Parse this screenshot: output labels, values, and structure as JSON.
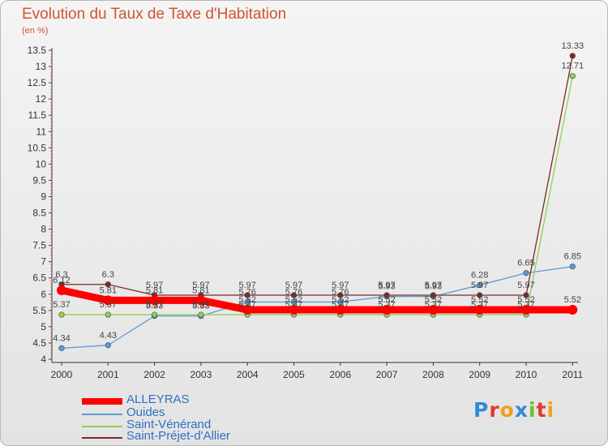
{
  "title": "Evolution du Taux de Taxe d'Habitation",
  "subtitle": "(en %)",
  "logo_text": "Proxiti",
  "logo_colors": [
    "#2f8ad8",
    "#e23b2a",
    "#f0a01a",
    "#2f8ad8",
    "#6cbf2a",
    "#e23b2a",
    "#f0a01a"
  ],
  "chart_data": {
    "type": "line",
    "categories": [
      "2000",
      "2001",
      "2002",
      "2003",
      "2004",
      "2005",
      "2006",
      "2007",
      "2008",
      "2009",
      "2010",
      "2011"
    ],
    "y_ticks": [
      "4",
      "4.5",
      "5",
      "5.5",
      "6",
      "6.5",
      "7",
      "7.5",
      "8",
      "8.5",
      "9",
      "9.5",
      "10",
      "10.5",
      "11",
      "11.5",
      "12",
      "12.5",
      "13",
      "13.5"
    ],
    "ylim": [
      4,
      13.5
    ],
    "grid": false,
    "series": [
      {
        "name": "ALLEYRAS",
        "color": "#ff0000",
        "values": [
          6.12,
          5.81,
          5.81,
          5.81,
          5.52,
          5.52,
          5.52,
          5.52,
          5.52,
          5.52,
          5.52,
          5.52
        ],
        "labels": [
          "6.12",
          "5.81",
          "5.81",
          "5.81",
          "5.52",
          "5.52",
          "5.52",
          "5.52",
          "5.52",
          "5.52",
          "5.52",
          "5.52"
        ]
      },
      {
        "name": "Ouides",
        "color": "#5b9bd5",
        "values": [
          4.34,
          4.43,
          5.33,
          5.33,
          5.76,
          5.76,
          5.76,
          5.93,
          5.93,
          6.28,
          6.65,
          6.85
        ],
        "labels": [
          "4.34",
          "4.43",
          "5.33",
          "5.33",
          "5.76",
          "5.76",
          "5.76",
          "5.93",
          "5.93",
          "6.28",
          "6.65",
          "6.85"
        ]
      },
      {
        "name": "Saint-Vénérand",
        "color": "#90d050",
        "values": [
          5.37,
          5.37,
          5.37,
          5.37,
          5.37,
          5.37,
          5.37,
          5.37,
          5.37,
          5.37,
          5.37,
          12.71
        ],
        "labels": [
          "5.37",
          "5.37",
          "5.37",
          "5.37",
          "5.37",
          "5.37",
          "5.37",
          "5.37",
          "5.37",
          "5.37",
          "5.37",
          "12.71"
        ]
      },
      {
        "name": "Saint-Préjet-d'Allier",
        "color": "#7b2a2a",
        "values": [
          6.3,
          6.3,
          5.97,
          5.97,
          5.97,
          5.97,
          5.97,
          5.97,
          5.97,
          5.97,
          5.97,
          13.33
        ],
        "labels": [
          "6.3",
          "6.3",
          "5.97",
          "5.97",
          "5.97",
          "5.97",
          "5.97",
          "5.97",
          "5.97",
          "5.97",
          "5.97",
          "13.33"
        ]
      }
    ]
  }
}
